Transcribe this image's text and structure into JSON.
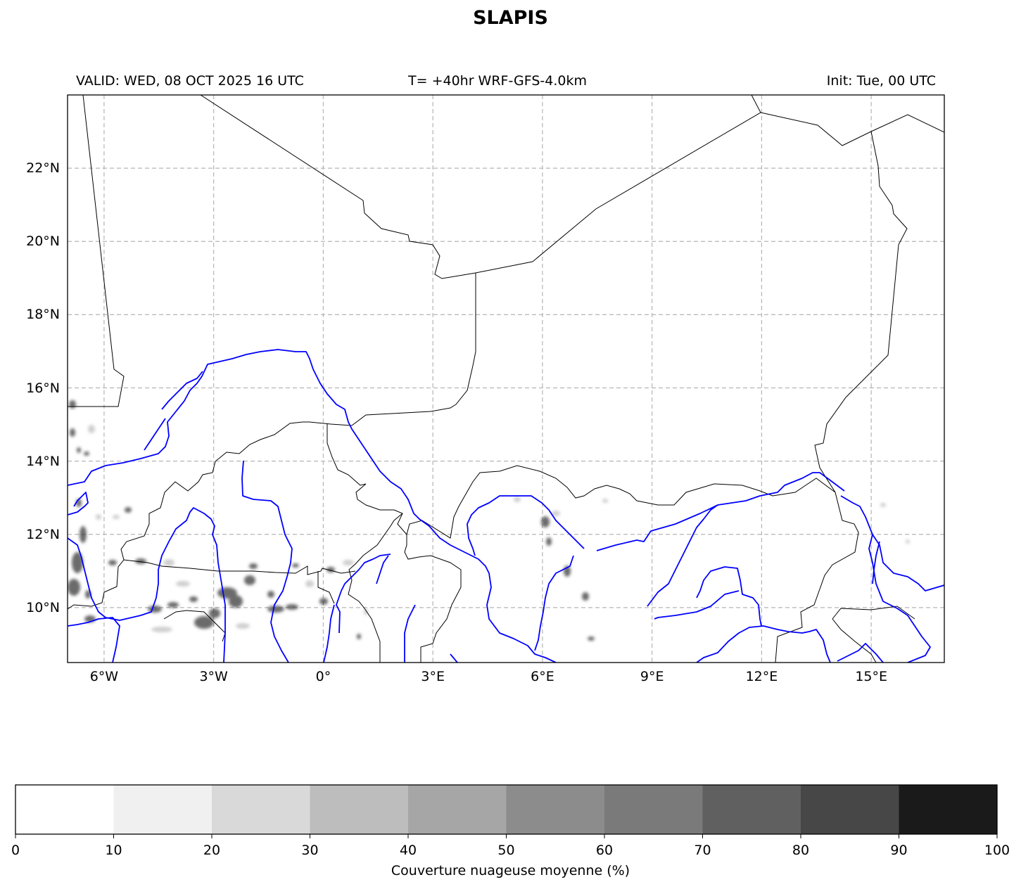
{
  "title": "SLAPIS",
  "header": {
    "valid": "VALID: WED, 08 OCT 2025 16 UTC",
    "model": "T= +40hr WRF-GFS-4.0km",
    "init": "Init: Tue, 00 UTC"
  },
  "map": {
    "extent_lon": [
      -7,
      17
    ],
    "extent_lat": [
      8.5,
      24
    ],
    "lon_ticks": [
      {
        "value": -6,
        "label": "6°W"
      },
      {
        "value": -3,
        "label": "3°W"
      },
      {
        "value": 0,
        "label": "0°"
      },
      {
        "value": 3,
        "label": "3°E"
      },
      {
        "value": 6,
        "label": "6°E"
      },
      {
        "value": 9,
        "label": "9°E"
      },
      {
        "value": 12,
        "label": "12°E"
      },
      {
        "value": 15,
        "label": "15°E"
      }
    ],
    "lat_ticks": [
      {
        "value": 22,
        "label": "22°N"
      },
      {
        "value": 20,
        "label": "20°N"
      },
      {
        "value": 18,
        "label": "18°N"
      },
      {
        "value": 16,
        "label": "16°N"
      },
      {
        "value": 14,
        "label": "14°N"
      },
      {
        "value": 12,
        "label": "12°N"
      },
      {
        "value": 10,
        "label": "10°N"
      }
    ],
    "gridlines": "dashed",
    "river_color": "#0000ff",
    "border_color": "#000000"
  },
  "colorbar": {
    "label": "Couverture nuageuse moyenne (%)",
    "ticks": [
      "0",
      "10",
      "20",
      "30",
      "40",
      "50",
      "60",
      "70",
      "80",
      "90",
      "100"
    ],
    "colors": [
      "#ffffff",
      "#f0f0f0",
      "#d9d9d9",
      "#bdbdbd",
      "#a6a6a6",
      "#8c8c8c",
      "#7a7a7a",
      "#606060",
      "#474747",
      "#1a1a1a"
    ]
  }
}
